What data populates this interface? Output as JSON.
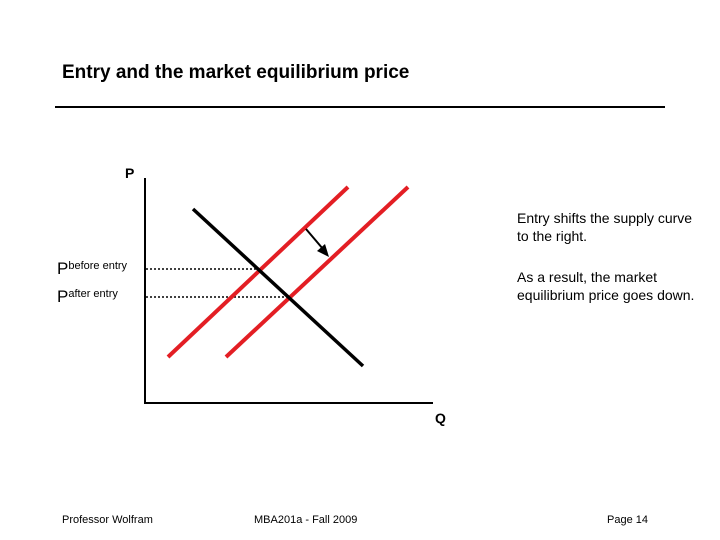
{
  "slide": {
    "title": "Entry and the market equilibrium price"
  },
  "diagram": {
    "y_axis_label": "P",
    "x_axis_label": "Q",
    "price_before": {
      "symbol": "P",
      "subscript": "before entry"
    },
    "price_after": {
      "symbol": "P",
      "subscript": "after entry"
    },
    "colors": {
      "supply": "#e31e24",
      "demand": "#000000",
      "axes": "#000000",
      "guides": "#000000"
    },
    "icons": [
      "shift-arrow-icon"
    ]
  },
  "notes": [
    "Entry shifts the supply curve to the right.",
    "As a result, the market equilibrium price goes down."
  ],
  "footer": {
    "left": "Professor Wolfram",
    "center": "MBA201a - Fall 2009",
    "right": "Page 14"
  }
}
